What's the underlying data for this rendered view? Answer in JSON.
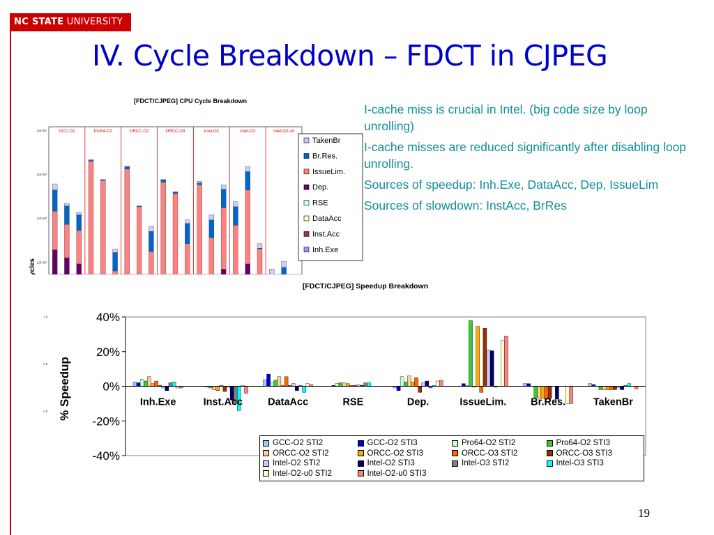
{
  "header": {
    "logo_bold": "NC STATE",
    "logo_rest": " UNIVERSITY",
    "title": "IV. Cycle Breakdown – FDCT in CJPEG"
  },
  "bullets": [
    "I-cache miss is crucial in Intel. (big code size by loop unrolling)",
    "I-cache misses are reduced significantly after disabling loop unrolling.",
    "Sources of speedup: Inh.Exe, DataAcc, Dep, IssueLim",
    "Sources of slowdown: InstAcc, BrRes"
  ],
  "page_number": "19",
  "colors": {
    "brand_red": "#cc0000",
    "title_blue": "#0000cc",
    "bullet_teal": "#0f8f9a"
  },
  "chart_data": [
    {
      "type": "bar",
      "stacked": true,
      "title": "[FDCT/CJPEG] CPU Cycle Breakdown",
      "ylabel": "Cycles",
      "ytick_labels": [
        "3.E+07",
        "3.E+07",
        "2.E+07",
        "2.E+07"
      ],
      "ytick_values": [
        30000000,
        27500000,
        25000000,
        22500000
      ],
      "ylim": [
        21800000,
        30200000
      ],
      "groups": [
        "GCC-O2",
        "Pro64-O2",
        "ORCC-O2",
        "ORCC-O3",
        "Intel-O2",
        "Intel-O3",
        "Intel-O2-u0"
      ],
      "bars_per_group": 3,
      "components": [
        "Inh.Exe",
        "Inst.Acc",
        "DataAcc",
        "RSE",
        "Dep.",
        "IssueLim.",
        "Br.Res.",
        "TakenBr"
      ],
      "legend_order": [
        "TakenBr",
        "Br.Res.",
        "IssueLim.",
        "Dep.",
        "RSE",
        "DataAcc",
        "Inst.Acc",
        "Inh.Exe"
      ],
      "legend_position": "right",
      "component_colors": {
        "Inh.Exe": "#9999ff",
        "Inst.Acc": "#993366",
        "DataAcc": "#ffffcc",
        "RSE": "#ccffff",
        "Dep.": "#660066",
        "IssueLim.": "#ff8080",
        "Br.Res.": "#0066cc",
        "TakenBr": "#ccccff"
      },
      "bars": [
        {
          "group": "GCC-O2",
          "Dep.": 1400000,
          "IssueLim.": 2200000,
          "Br.Res.": 1200000,
          "TakenBr": 350000
        },
        {
          "group": "GCC-O2",
          "Dep.": 950000,
          "IssueLim.": 1900000,
          "Br.Res.": 1050000,
          "TakenBr": 150000
        },
        {
          "group": "GCC-O2",
          "Dep.": 600000,
          "IssueLim.": 1900000,
          "Br.Res.": 900000,
          "TakenBr": 150000
        },
        {
          "group": "Pro64-O2",
          "IssueLim.": 6450000,
          "Br.Res.": 80000
        },
        {
          "group": "Pro64-O2",
          "IssueLim.": 5350000,
          "Br.Res.": 50000
        },
        {
          "group": "Pro64-O2",
          "IssueLim.": 200000,
          "Br.Res.": 1050000,
          "TakenBr": 200000
        },
        {
          "group": "ORCC-O2",
          "IssueLim.": 6000000,
          "Br.Res.": 150000
        },
        {
          "group": "ORCC-O2",
          "IssueLim.": 3850000,
          "Br.Res.": 50000
        },
        {
          "group": "ORCC-O2",
          "IssueLim.": 1300000,
          "Br.Res.": 1150000,
          "TakenBr": 300000
        },
        {
          "group": "ORCC-O3",
          "IssueLim.": 5250000,
          "Br.Res.": 150000
        },
        {
          "group": "ORCC-O3",
          "IssueLim.": 4600000,
          "Br.Res.": 100000
        },
        {
          "group": "ORCC-O3",
          "IssueLim.": 1750000,
          "Br.Res.": 1150000,
          "TakenBr": 200000
        },
        {
          "group": "Intel-O2",
          "IssueLim.": 5100000,
          "Br.Res.": 100000,
          "TakenBr": 100000
        },
        {
          "group": "Intel-O2",
          "IssueLim.": 2100000,
          "Br.Res.": 1000000,
          "TakenBr": 300000
        },
        {
          "group": "Intel-O2",
          "Dep.": 300000,
          "IssueLim.": 3500000,
          "Br.Res.": 1050000,
          "TakenBr": 250000
        },
        {
          "group": "Intel-O3",
          "IssueLim.": 2800000,
          "Br.Res.": 1050000,
          "TakenBr": 300000
        },
        {
          "group": "Intel-O3",
          "Dep.": 600000,
          "IssueLim.": 4200000,
          "Br.Res.": 1050000,
          "TakenBr": 300000
        },
        {
          "group": "Intel-O3",
          "IssueLim.": 1450000,
          "Br.Res.": 50000,
          "TakenBr": 250000
        },
        {
          "group": "Intel-O2-u0",
          "TakenBr": 300000
        },
        {
          "group": "Intel-O2-u0",
          "Br.Res.": 400000,
          "TakenBr": 350000
        },
        {
          "group": "Intel-O2-u0",
          "TakenBr": 0
        }
      ]
    },
    {
      "type": "bar",
      "title": "[FDCT/CJPEG] Speedup Breakdown",
      "ylabel": "% Speedup",
      "yticks": [
        40,
        20,
        0,
        -20,
        -40
      ],
      "ytick_labels": [
        "40%",
        "20%",
        "0%",
        "-20%",
        "-40%"
      ],
      "ylim": [
        -40,
        40
      ],
      "faint_tick_labels": [
        "1.E",
        "5.E",
        "0.E"
      ],
      "legend_position": "bottom-right",
      "categories": [
        "Inh.Exe",
        "Inst.Acc",
        "DataAcc",
        "RSE",
        "Dep.",
        "IssueLim.",
        "Br.Res.",
        "TakenBr"
      ],
      "series": [
        {
          "name": "GCC-O2 STI2",
          "color": "#99ccff",
          "values": [
            2.5,
            0,
            3.8,
            0,
            -1,
            0,
            1.5,
            1.5
          ]
        },
        {
          "name": "GCC-O2 STI3",
          "color": "#0000cc",
          "values": [
            2,
            0,
            7,
            0.5,
            -2.5,
            1.5,
            1.5,
            1
          ]
        },
        {
          "name": "Pro64-O2 STI2",
          "color": "#ccffcc",
          "values": [
            4,
            -0.5,
            2,
            1.5,
            5.5,
            0.5,
            0,
            0
          ]
        },
        {
          "name": "Pro64-O2 STI3",
          "color": "#33cc33",
          "values": [
            3,
            -1,
            3.5,
            2,
            2.5,
            38,
            -6.5,
            -2
          ]
        },
        {
          "name": "ORCC-O2 STI2",
          "color": "#ffcc99",
          "values": [
            5.5,
            -2,
            5.5,
            2,
            6,
            -0.5,
            -7,
            -2
          ]
        },
        {
          "name": "ORCC-O2 STI3",
          "color": "#ffaa00",
          "values": [
            1.5,
            -2.5,
            0.5,
            1.5,
            2.5,
            34.5,
            -7,
            -2
          ]
        },
        {
          "name": "ORCC-O3 STI2",
          "color": "#ff6600",
          "values": [
            3,
            0.5,
            5.5,
            0.5,
            5,
            -3.5,
            -7.5,
            -2
          ]
        },
        {
          "name": "ORCC-O3 STI3",
          "color": "#993300",
          "values": [
            0.5,
            -3,
            0.5,
            0.5,
            -3.5,
            33.5,
            -7,
            -2
          ]
        },
        {
          "name": "Intel-O2 STI2",
          "color": "#ccccff",
          "values": [
            -1,
            -0.5,
            1.5,
            1,
            2,
            21,
            0,
            -1
          ]
        },
        {
          "name": "Intel-O2 STI3",
          "color": "#000066",
          "values": [
            -2.5,
            -8,
            -2.5,
            0.5,
            3,
            20.5,
            -7.5,
            -2
          ]
        },
        {
          "name": "Intel-O3 STI2",
          "color": "#808080",
          "values": [
            2,
            -10,
            0.5,
            2,
            -1,
            -0.5,
            0,
            0.5
          ]
        },
        {
          "name": "Intel-O3 STI3",
          "color": "#00ffff",
          "values": [
            2.5,
            -14,
            -3.5,
            2,
            0.5,
            0,
            0,
            1.5
          ]
        },
        {
          "name": "Intel-O2-u0 STI2",
          "color": "#ffffcc",
          "values": [
            -1,
            0.5,
            1.5,
            0,
            3,
            26.5,
            -10,
            0
          ]
        },
        {
          "name": "Intel-O2-u0 STI3",
          "color": "#ff8080",
          "values": [
            -1,
            -4,
            1,
            0,
            3.5,
            29,
            -10,
            -1.5
          ]
        }
      ]
    }
  ]
}
